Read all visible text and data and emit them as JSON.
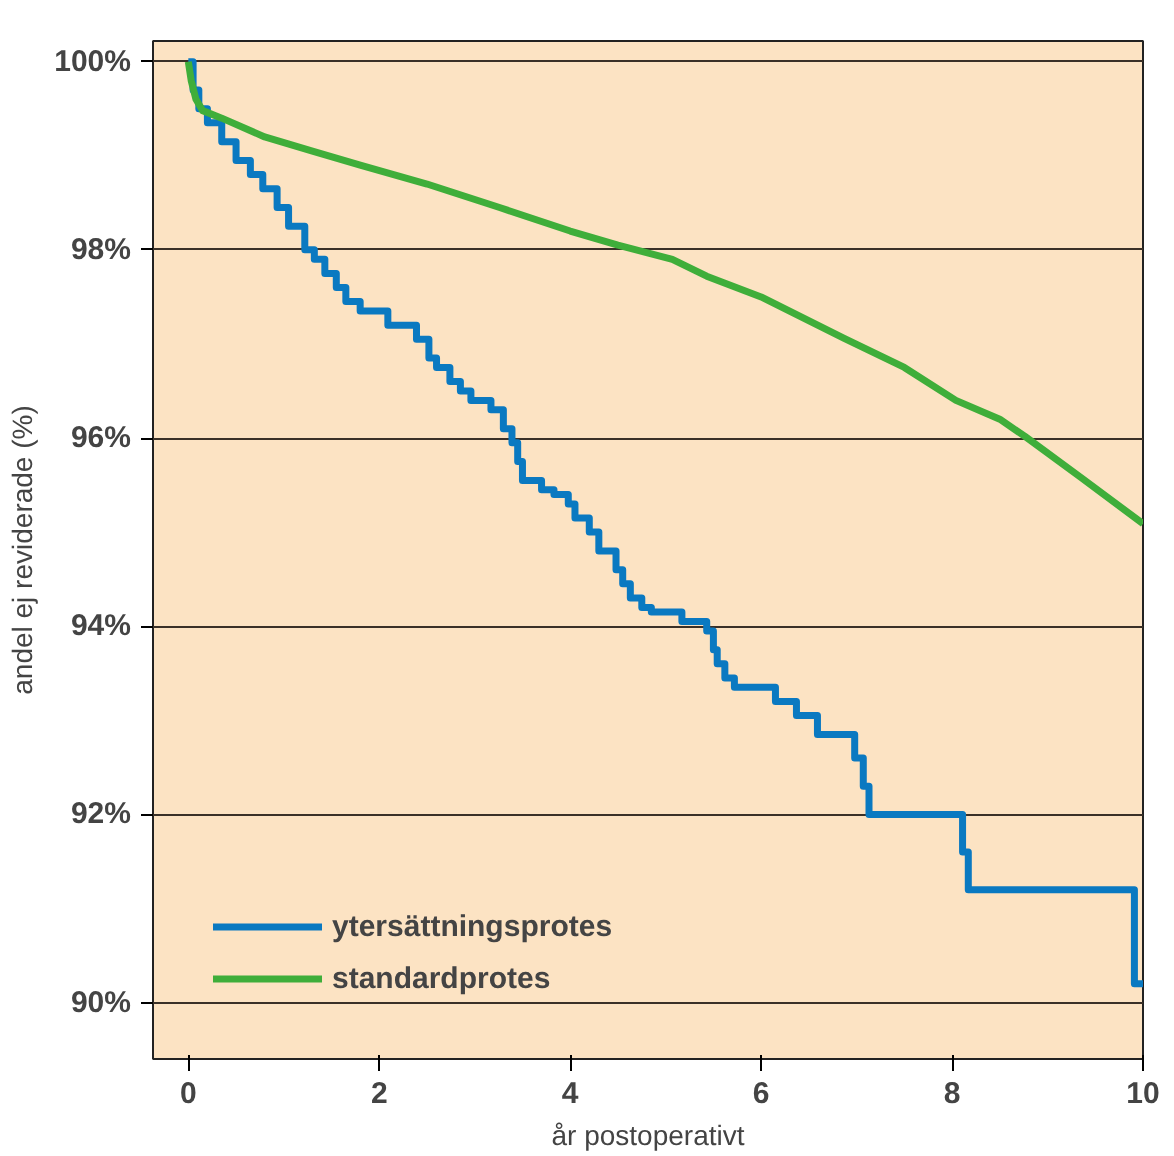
{
  "chart_data": {
    "type": "line",
    "xlabel": "år postoperativt",
    "ylabel": "andel ej reviderade (%)",
    "xlim": [
      -0.37,
      10
    ],
    "ylim": [
      89.4,
      100.22
    ],
    "xticks": [
      0,
      2,
      4,
      6,
      8,
      10
    ],
    "yticks": [
      {
        "value": 90,
        "label": "90%"
      },
      {
        "value": 92,
        "label": "92%"
      },
      {
        "value": 94,
        "label": "94%"
      },
      {
        "value": 96,
        "label": "96%"
      },
      {
        "value": 98,
        "label": "98%"
      },
      {
        "value": 100,
        "label": "100%"
      }
    ],
    "grid": "y",
    "legend": "bottom left",
    "marker": "none",
    "line_style": "solid",
    "series": [
      {
        "name": "ytersättningsprotes",
        "type": "step",
        "color": "#0a79c1",
        "x": [
          0,
          0.05,
          0.11,
          0.2,
          0.35,
          0.5,
          0.65,
          0.78,
          0.93,
          1.05,
          1.22,
          1.32,
          1.43,
          1.55,
          1.65,
          1.8,
          2.09,
          2.39,
          2.52,
          2.6,
          2.74,
          2.85,
          2.96,
          3.17,
          3.3,
          3.39,
          3.45,
          3.5,
          3.7,
          3.83,
          3.98,
          4.05,
          4.2,
          4.3,
          4.48,
          4.55,
          4.63,
          4.75,
          4.85,
          5.17,
          5.43,
          5.5,
          5.54,
          5.62,
          5.72,
          6.15,
          6.37,
          6.59,
          6.98,
          7.07,
          7.13,
          8.11,
          8.17,
          9.91,
          10
        ],
        "values": [
          100,
          99.7,
          99.5,
          99.35,
          99.15,
          98.95,
          98.8,
          98.65,
          98.45,
          98.25,
          98.0,
          97.9,
          97.75,
          97.6,
          97.45,
          97.35,
          97.2,
          97.05,
          96.85,
          96.75,
          96.6,
          96.5,
          96.4,
          96.3,
          96.1,
          95.95,
          95.75,
          95.55,
          95.45,
          95.4,
          95.3,
          95.15,
          95.0,
          94.8,
          94.6,
          94.45,
          94.3,
          94.2,
          94.15,
          94.05,
          93.95,
          93.75,
          93.6,
          93.45,
          93.35,
          93.2,
          93.05,
          92.85,
          92.6,
          92.3,
          92.0,
          91.6,
          91.2,
          90.2,
          90.2
        ]
      },
      {
        "name": "standardprotes",
        "color": "#3fae3a",
        "x": [
          0,
          0.03,
          0.08,
          0.15,
          0.35,
          0.8,
          1.3,
          1.8,
          2.5,
          3.26,
          4,
          4.5,
          5.07,
          5.43,
          6,
          6.87,
          7.5,
          8.04,
          8.5,
          8.76,
          9.35,
          10
        ],
        "values": [
          100,
          99.8,
          99.6,
          99.48,
          99.4,
          99.2,
          99.05,
          98.9,
          98.7,
          98.45,
          98.2,
          98.05,
          97.9,
          97.72,
          97.5,
          97.06,
          96.75,
          96.4,
          96.2,
          96.02,
          95.58,
          95.09
        ]
      }
    ]
  }
}
